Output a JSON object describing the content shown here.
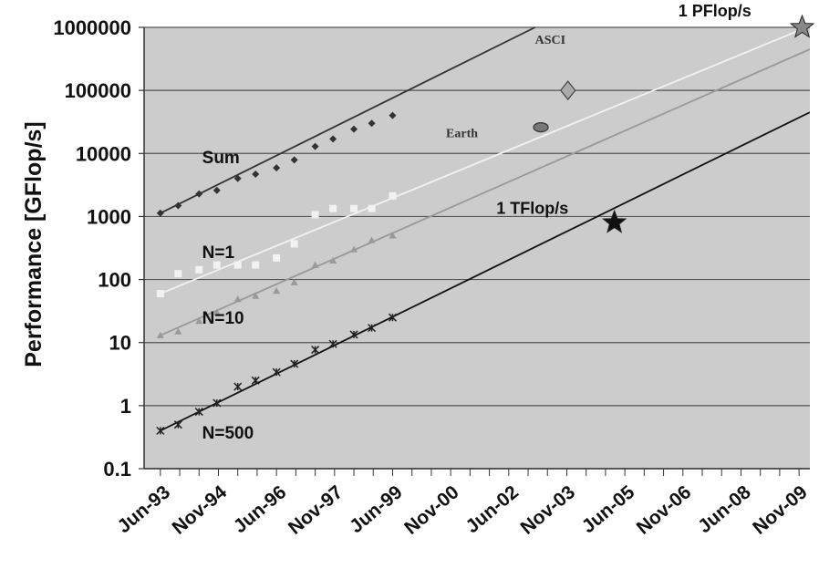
{
  "chart_data": {
    "type": "scatter",
    "title": "",
    "ylabel": "Performance [GFlop/s]",
    "xlabel": "",
    "y_scale": "log",
    "ylim": [
      0.1,
      1000000
    ],
    "y_ticks": [
      "1000000",
      "100000",
      "10000",
      "1000",
      "100",
      "10",
      "1",
      "0.1"
    ],
    "y_tick_values": [
      1000000,
      100000,
      10000,
      1000,
      100,
      10,
      1,
      0.1
    ],
    "x_ticks": [
      "Jun-93",
      "Nov-94",
      "Jun-96",
      "Nov-97",
      "Jun-99",
      "Nov-00",
      "Jun-02",
      "Nov-03",
      "Jun-05",
      "Nov-06",
      "Jun-08",
      "Nov-09"
    ],
    "x_tick_years": [
      1993.42,
      1994.88,
      1996.42,
      1997.88,
      1999.42,
      2000.88,
      2002.42,
      2003.88,
      2005.42,
      2006.88,
      2008.42,
      2009.88
    ],
    "xlim": [
      1993.0,
      2010.2
    ],
    "grid": true,
    "plot_background": "#cccccc",
    "series": [
      {
        "name": "Sum",
        "marker": "diamond",
        "color": "#333333",
        "x": [
          1993.42,
          1993.88,
          1994.42,
          1994.88,
          1995.42,
          1995.88,
          1996.42,
          1996.88,
          1997.42,
          1997.88,
          1998.42,
          1998.88,
          1999.42
        ],
        "y": [
          1130,
          1490,
          2280,
          2600,
          4000,
          4700,
          5900,
          7900,
          12900,
          17000,
          24300,
          30000,
          40000
        ]
      },
      {
        "name": "N=1",
        "marker": "square",
        "color": "#f2f2f2",
        "x": [
          1993.42,
          1993.88,
          1994.42,
          1994.88,
          1995.42,
          1995.88,
          1996.42,
          1996.88,
          1997.42,
          1997.88,
          1998.42,
          1998.88,
          1999.42
        ],
        "y": [
          59.7,
          124,
          143,
          170,
          170,
          170,
          220,
          368,
          1068,
          1338,
          1338,
          1338,
          2121
        ]
      },
      {
        "name": "N=10",
        "marker": "triangle",
        "color": "#999999",
        "x": [
          1993.42,
          1993.88,
          1994.42,
          1994.88,
          1995.42,
          1995.88,
          1996.42,
          1996.88,
          1997.42,
          1997.88,
          1998.42,
          1998.88,
          1999.42
        ],
        "y": [
          13,
          15,
          22,
          30,
          49,
          55,
          66,
          90,
          170,
          200,
          300,
          420,
          500
        ]
      },
      {
        "name": "N=500",
        "marker": "star-x",
        "color": "#222222",
        "x": [
          1993.42,
          1993.88,
          1994.42,
          1994.88,
          1995.42,
          1995.88,
          1996.42,
          1996.88,
          1997.42,
          1997.88,
          1998.42,
          1998.88,
          1999.42
        ],
        "y": [
          0.4,
          0.5,
          0.8,
          1.1,
          2.0,
          2.5,
          3.4,
          4.6,
          7.7,
          9.5,
          13.4,
          17.1,
          25.0
        ]
      }
    ],
    "trend_lines": [
      {
        "name": "Sum",
        "color": "#333333",
        "x": [
          1993.42,
          2003.1
        ],
        "y": [
          1130,
          1000000
        ]
      },
      {
        "name": "N=1",
        "color": "#f2f2f2",
        "x": [
          1993.42,
          2010.2
        ],
        "y": [
          59.7,
          1050000
        ]
      },
      {
        "name": "N=10",
        "color": "#999999",
        "x": [
          1993.42,
          2010.2
        ],
        "y": [
          13,
          450000
        ]
      },
      {
        "name": "N=500",
        "color": "#111111",
        "x": [
          1993.42,
          2010.2
        ],
        "y": [
          0.4,
          45000
        ]
      }
    ],
    "annotations": [
      {
        "text": "ASCI",
        "x": 2003.95,
        "y": 100000,
        "marker": "diamond",
        "label_x": 2003.1,
        "label_y": 550000,
        "font": "serif"
      },
      {
        "text": "Earth",
        "x": 2003.25,
        "y": 26000,
        "marker": "ellipse",
        "label_x": 2000.8,
        "label_y": 18000,
        "font": "serif"
      },
      {
        "text": "1 TFlop/s",
        "x": 2005.15,
        "y": 800,
        "marker": "star",
        "label_x": 2002.1,
        "label_y": 1100,
        "font": "sans"
      },
      {
        "text": "1 PFlop/s",
        "x": 2010.0,
        "y": 1000000,
        "marker": "star",
        "label_x": 2006.8,
        "label_y": 1500000,
        "font": "sans"
      }
    ],
    "series_labels": [
      {
        "text": "Sum",
        "x": 1994.5,
        "y": 7000
      },
      {
        "text": "N=1",
        "x": 1994.5,
        "y": 220
      },
      {
        "text": "N=10",
        "x": 1994.5,
        "y": 20
      },
      {
        "text": "N=500",
        "x": 1994.5,
        "y": 0.3
      }
    ]
  }
}
